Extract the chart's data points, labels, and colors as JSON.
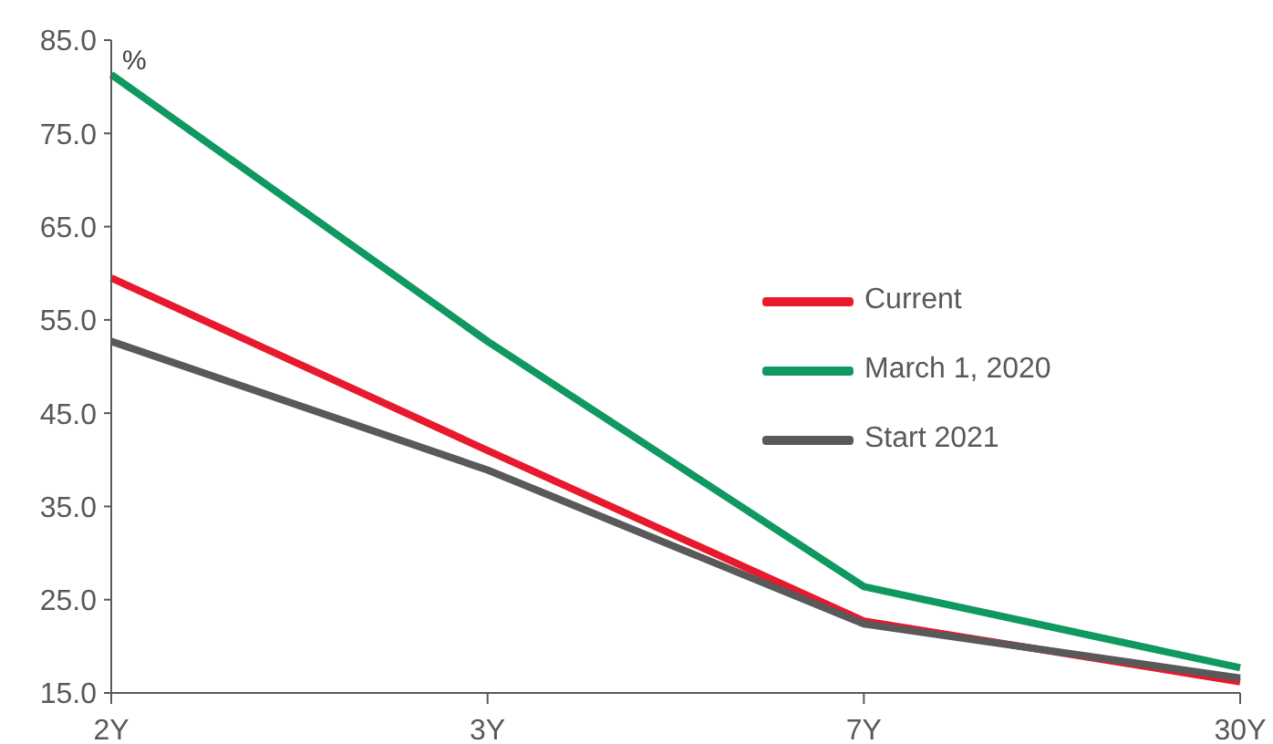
{
  "chart_data": {
    "type": "line",
    "ylabel": "%",
    "categories": [
      "2Y",
      "3Y",
      "7Y",
      "30Y"
    ],
    "series": [
      {
        "name": "Current",
        "color": "#e8192c",
        "values": [
          59.5,
          41.0,
          22.7,
          16.2
        ]
      },
      {
        "name": "March 1, 2020",
        "color": "#0f9960",
        "values": [
          81.3,
          52.7,
          26.4,
          17.7
        ]
      },
      {
        "name": "Start 2021",
        "color": "#595959",
        "values": [
          52.7,
          38.9,
          22.4,
          16.6
        ]
      }
    ],
    "ylim": [
      15,
      85
    ],
    "yticks": [
      {
        "value": 15,
        "label": "15.0"
      },
      {
        "value": 25,
        "label": "25.0"
      },
      {
        "value": 35,
        "label": "35.0"
      },
      {
        "value": 45,
        "label": "45.0"
      },
      {
        "value": 55,
        "label": "55.0"
      },
      {
        "value": 65,
        "label": "65.0"
      },
      {
        "value": 75,
        "label": "75.0"
      },
      {
        "value": 85,
        "label": "85.0"
      }
    ],
    "grid": false,
    "legend": "right",
    "marker": "none",
    "line_style": "solid"
  }
}
